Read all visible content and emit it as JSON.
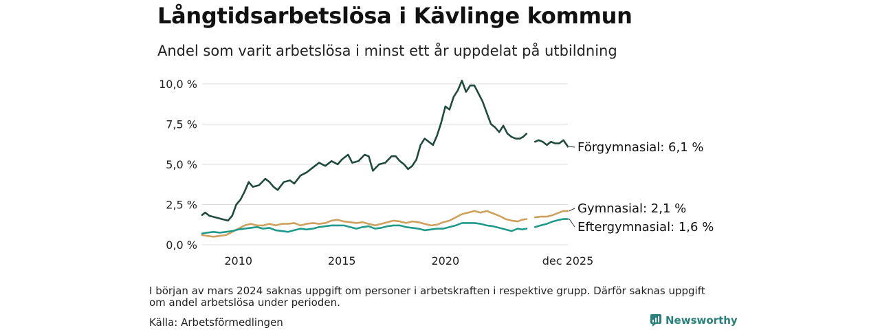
{
  "title": "Långtidsarbetslösa i Kävlinge kommun",
  "subtitle": "Andel som varit arbetslösa i minst ett år uppdelat på utbildning",
  "note": "I början av mars 2024 saknas uppgift om personer i arbetskraften i respektive grupp. Därför saknas uppgift om andel arbetslösa under perioden.",
  "source": "Källa: Arbetsförmedlingen",
  "brand": "Newsworthy",
  "colors": {
    "forgymnasial": "#1f4a3f",
    "gymnasial": "#cfa05c",
    "eftergymnasial": "#1f9a8a",
    "grid": "#dcdcdc",
    "brand": "#2a7f7a"
  },
  "chart_data": {
    "type": "line",
    "x_unit": "month",
    "xlim": [
      2008.25,
      2025.917
    ],
    "ylim": [
      0,
      10
    ],
    "y_ticks": [
      0,
      2.5,
      5,
      7.5,
      10
    ],
    "y_tick_labels": [
      "0,0 %",
      "2,5 %",
      "5,0 %",
      "7,5 %",
      "10,0 %"
    ],
    "x_ticks": [
      2010,
      2015,
      2020,
      2025.917
    ],
    "x_tick_labels": [
      "2010",
      "2015",
      "2020",
      "dec 2025"
    ],
    "gap": {
      "from": 2023.917,
      "to": 2024.333
    },
    "series": [
      {
        "name": "Förgymnasial",
        "label": "Förgymnasial: 6,1 %",
        "color": "#1f4a3f",
        "points": [
          [
            2008.25,
            1.85
          ],
          [
            2008.4,
            2.0
          ],
          [
            2008.6,
            1.8
          ],
          [
            2008.9,
            1.7
          ],
          [
            2009.2,
            1.6
          ],
          [
            2009.5,
            1.5
          ],
          [
            2009.7,
            1.8
          ],
          [
            2009.9,
            2.5
          ],
          [
            2010.1,
            2.8
          ],
          [
            2010.3,
            3.3
          ],
          [
            2010.5,
            3.9
          ],
          [
            2010.7,
            3.6
          ],
          [
            2011.0,
            3.7
          ],
          [
            2011.3,
            4.1
          ],
          [
            2011.5,
            3.9
          ],
          [
            2011.7,
            3.6
          ],
          [
            2011.9,
            3.4
          ],
          [
            2012.2,
            3.9
          ],
          [
            2012.5,
            4.0
          ],
          [
            2012.7,
            3.8
          ],
          [
            2013.0,
            4.3
          ],
          [
            2013.3,
            4.5
          ],
          [
            2013.6,
            4.8
          ],
          [
            2013.9,
            5.1
          ],
          [
            2014.2,
            4.9
          ],
          [
            2014.5,
            5.2
          ],
          [
            2014.8,
            5.0
          ],
          [
            2015.0,
            5.3
          ],
          [
            2015.3,
            5.6
          ],
          [
            2015.5,
            5.1
          ],
          [
            2015.8,
            5.2
          ],
          [
            2016.1,
            5.6
          ],
          [
            2016.3,
            5.5
          ],
          [
            2016.5,
            4.6
          ],
          [
            2016.8,
            5.0
          ],
          [
            2017.1,
            5.1
          ],
          [
            2017.4,
            5.5
          ],
          [
            2017.6,
            5.5
          ],
          [
            2017.8,
            5.2
          ],
          [
            2018.0,
            5.0
          ],
          [
            2018.2,
            4.7
          ],
          [
            2018.4,
            4.9
          ],
          [
            2018.6,
            5.3
          ],
          [
            2018.8,
            6.2
          ],
          [
            2019.0,
            6.6
          ],
          [
            2019.2,
            6.4
          ],
          [
            2019.4,
            6.2
          ],
          [
            2019.6,
            6.8
          ],
          [
            2019.8,
            7.6
          ],
          [
            2020.0,
            8.6
          ],
          [
            2020.2,
            8.4
          ],
          [
            2020.4,
            9.2
          ],
          [
            2020.6,
            9.6
          ],
          [
            2020.8,
            10.2
          ],
          [
            2021.0,
            9.5
          ],
          [
            2021.2,
            9.9
          ],
          [
            2021.4,
            9.9
          ],
          [
            2021.6,
            9.4
          ],
          [
            2021.8,
            8.9
          ],
          [
            2022.0,
            8.2
          ],
          [
            2022.2,
            7.5
          ],
          [
            2022.4,
            7.3
          ],
          [
            2022.6,
            7.0
          ],
          [
            2022.8,
            7.4
          ],
          [
            2023.0,
            6.9
          ],
          [
            2023.2,
            6.7
          ],
          [
            2023.4,
            6.6
          ],
          [
            2023.6,
            6.6
          ],
          [
            2023.75,
            6.7
          ],
          [
            2023.917,
            6.9
          ],
          [
            2024.333,
            6.4
          ],
          [
            2024.5,
            6.5
          ],
          [
            2024.7,
            6.4
          ],
          [
            2024.9,
            6.2
          ],
          [
            2025.1,
            6.4
          ],
          [
            2025.3,
            6.3
          ],
          [
            2025.5,
            6.3
          ],
          [
            2025.7,
            6.5
          ],
          [
            2025.917,
            6.1
          ]
        ]
      },
      {
        "name": "Gymnasial",
        "label": "Gymnasial: 2,1 %",
        "color": "#cfa05c",
        "points": [
          [
            2008.25,
            0.6
          ],
          [
            2008.5,
            0.55
          ],
          [
            2008.8,
            0.5
          ],
          [
            2009.1,
            0.55
          ],
          [
            2009.4,
            0.6
          ],
          [
            2009.7,
            0.8
          ],
          [
            2010.0,
            1.0
          ],
          [
            2010.3,
            1.2
          ],
          [
            2010.6,
            1.3
          ],
          [
            2010.9,
            1.2
          ],
          [
            2011.2,
            1.2
          ],
          [
            2011.5,
            1.3
          ],
          [
            2011.8,
            1.2
          ],
          [
            2012.1,
            1.3
          ],
          [
            2012.4,
            1.3
          ],
          [
            2012.7,
            1.35
          ],
          [
            2013.0,
            1.2
          ],
          [
            2013.3,
            1.3
          ],
          [
            2013.6,
            1.35
          ],
          [
            2013.9,
            1.3
          ],
          [
            2014.2,
            1.35
          ],
          [
            2014.5,
            1.5
          ],
          [
            2014.8,
            1.55
          ],
          [
            2015.1,
            1.45
          ],
          [
            2015.4,
            1.4
          ],
          [
            2015.7,
            1.35
          ],
          [
            2016.0,
            1.4
          ],
          [
            2016.3,
            1.3
          ],
          [
            2016.6,
            1.2
          ],
          [
            2016.9,
            1.3
          ],
          [
            2017.2,
            1.4
          ],
          [
            2017.5,
            1.5
          ],
          [
            2017.8,
            1.45
          ],
          [
            2018.1,
            1.35
          ],
          [
            2018.4,
            1.45
          ],
          [
            2018.7,
            1.4
          ],
          [
            2019.0,
            1.3
          ],
          [
            2019.3,
            1.2
          ],
          [
            2019.6,
            1.25
          ],
          [
            2019.9,
            1.4
          ],
          [
            2020.2,
            1.5
          ],
          [
            2020.5,
            1.7
          ],
          [
            2020.8,
            1.9
          ],
          [
            2021.1,
            2.0
          ],
          [
            2021.4,
            2.1
          ],
          [
            2021.7,
            2.0
          ],
          [
            2022.0,
            2.1
          ],
          [
            2022.3,
            1.95
          ],
          [
            2022.6,
            1.8
          ],
          [
            2022.9,
            1.6
          ],
          [
            2023.2,
            1.5
          ],
          [
            2023.5,
            1.45
          ],
          [
            2023.7,
            1.55
          ],
          [
            2023.917,
            1.6
          ],
          [
            2024.333,
            1.7
          ],
          [
            2024.6,
            1.75
          ],
          [
            2024.9,
            1.75
          ],
          [
            2025.2,
            1.85
          ],
          [
            2025.5,
            2.0
          ],
          [
            2025.7,
            2.1
          ],
          [
            2025.917,
            2.1
          ]
        ]
      },
      {
        "name": "Eftergymnasial",
        "label": "Eftergymnasial: 1,6 %",
        "color": "#1f9a8a",
        "points": [
          [
            2008.25,
            0.7
          ],
          [
            2008.5,
            0.75
          ],
          [
            2008.8,
            0.8
          ],
          [
            2009.1,
            0.75
          ],
          [
            2009.4,
            0.8
          ],
          [
            2009.7,
            0.85
          ],
          [
            2010.0,
            0.95
          ],
          [
            2010.3,
            1.0
          ],
          [
            2010.6,
            1.05
          ],
          [
            2010.9,
            1.1
          ],
          [
            2011.2,
            1.0
          ],
          [
            2011.5,
            1.05
          ],
          [
            2011.8,
            0.9
          ],
          [
            2012.1,
            0.85
          ],
          [
            2012.4,
            0.8
          ],
          [
            2012.7,
            0.9
          ],
          [
            2013.0,
            1.0
          ],
          [
            2013.3,
            0.95
          ],
          [
            2013.6,
            1.0
          ],
          [
            2013.9,
            1.1
          ],
          [
            2014.2,
            1.15
          ],
          [
            2014.5,
            1.2
          ],
          [
            2014.8,
            1.2
          ],
          [
            2015.1,
            1.2
          ],
          [
            2015.4,
            1.1
          ],
          [
            2015.7,
            1.0
          ],
          [
            2016.0,
            1.1
          ],
          [
            2016.3,
            1.15
          ],
          [
            2016.6,
            1.0
          ],
          [
            2016.9,
            1.05
          ],
          [
            2017.2,
            1.15
          ],
          [
            2017.5,
            1.2
          ],
          [
            2017.8,
            1.2
          ],
          [
            2018.1,
            1.1
          ],
          [
            2018.4,
            1.05
          ],
          [
            2018.7,
            1.0
          ],
          [
            2019.0,
            0.9
          ],
          [
            2019.3,
            0.95
          ],
          [
            2019.6,
            1.0
          ],
          [
            2019.9,
            1.0
          ],
          [
            2020.2,
            1.1
          ],
          [
            2020.5,
            1.2
          ],
          [
            2020.8,
            1.35
          ],
          [
            2021.1,
            1.35
          ],
          [
            2021.4,
            1.35
          ],
          [
            2021.7,
            1.3
          ],
          [
            2022.0,
            1.2
          ],
          [
            2022.3,
            1.15
          ],
          [
            2022.6,
            1.05
          ],
          [
            2022.9,
            0.95
          ],
          [
            2023.2,
            0.85
          ],
          [
            2023.5,
            1.0
          ],
          [
            2023.7,
            0.95
          ],
          [
            2023.917,
            1.0
          ],
          [
            2024.333,
            1.1
          ],
          [
            2024.6,
            1.2
          ],
          [
            2024.9,
            1.3
          ],
          [
            2025.2,
            1.45
          ],
          [
            2025.5,
            1.55
          ],
          [
            2025.7,
            1.6
          ],
          [
            2025.917,
            1.6
          ]
        ]
      }
    ]
  }
}
